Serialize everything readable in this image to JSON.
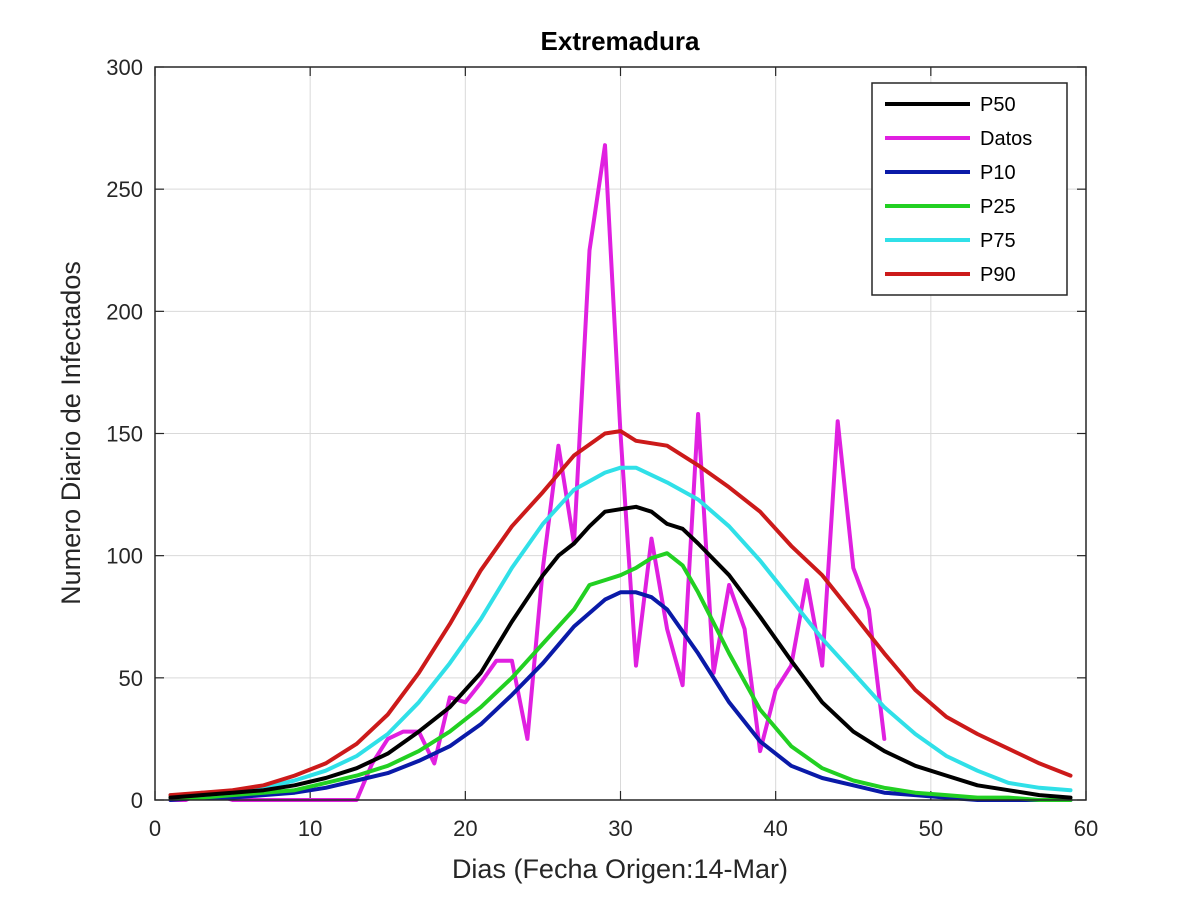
{
  "chart_data": {
    "type": "line",
    "title": "Extremadura",
    "xlabel": "Dias (Fecha Origen:14-Mar)",
    "ylabel": "Numero Diario de Infectados",
    "xlim": [
      0,
      60
    ],
    "ylim": [
      0,
      300
    ],
    "xticks": [
      "0",
      "10",
      "20",
      "30",
      "40",
      "50",
      "60"
    ],
    "yticks": [
      "0",
      "50",
      "100",
      "150",
      "200",
      "250",
      "300"
    ],
    "grid": true,
    "legend_position": "top-right",
    "series": [
      {
        "name": "P50",
        "color": "#000000",
        "x": [
          1,
          3,
          5,
          7,
          9,
          11,
          13,
          15,
          17,
          19,
          21,
          23,
          25,
          26,
          27,
          28,
          29,
          30,
          31,
          32,
          33,
          34,
          35,
          37,
          39,
          41,
          43,
          45,
          47,
          49,
          51,
          53,
          55,
          57,
          59
        ],
        "y": [
          1,
          2,
          3,
          4,
          6,
          9,
          13,
          19,
          28,
          38,
          52,
          73,
          92,
          100,
          105,
          112,
          118,
          119,
          120,
          118,
          113,
          111,
          105,
          92,
          75,
          57,
          40,
          28,
          20,
          14,
          10,
          6,
          4,
          2,
          1
        ]
      },
      {
        "name": "Datos",
        "color": "#e020e0",
        "x": [
          1,
          2,
          3,
          4,
          5,
          6,
          7,
          8,
          9,
          10,
          11,
          12,
          13,
          14,
          15,
          16,
          17,
          18,
          19,
          20,
          21,
          22,
          23,
          24,
          25,
          26,
          27,
          28,
          29,
          30,
          31,
          32,
          33,
          34,
          35,
          36,
          37,
          38,
          39,
          40,
          41,
          42,
          43,
          44,
          45,
          46,
          47
        ],
        "y": [
          0,
          0,
          3,
          2,
          0,
          0,
          0,
          0,
          0,
          0,
          0,
          0,
          0,
          15,
          25,
          28,
          28,
          15,
          42,
          40,
          48,
          57,
          57,
          25,
          95,
          145,
          105,
          225,
          268,
          150,
          55,
          107,
          70,
          47,
          158,
          52,
          88,
          70,
          20,
          45,
          55,
          90,
          55,
          155,
          95,
          78,
          25
        ]
      },
      {
        "name": "P10",
        "color": "#0a1aa8",
        "x": [
          1,
          3,
          5,
          7,
          9,
          11,
          13,
          15,
          17,
          19,
          21,
          23,
          25,
          27,
          29,
          30,
          31,
          32,
          33,
          35,
          37,
          39,
          41,
          43,
          45,
          47,
          49,
          51,
          53,
          55,
          57,
          59
        ],
        "y": [
          0,
          1,
          1,
          2,
          3,
          5,
          8,
          11,
          16,
          22,
          31,
          43,
          56,
          71,
          82,
          85,
          85,
          83,
          78,
          60,
          40,
          24,
          14,
          9,
          6,
          3,
          2,
          1,
          0,
          0,
          0,
          0
        ]
      },
      {
        "name": "P25",
        "color": "#22d022",
        "x": [
          1,
          3,
          5,
          7,
          9,
          11,
          13,
          15,
          17,
          19,
          21,
          23,
          25,
          27,
          28,
          29,
          30,
          31,
          32,
          33,
          34,
          35,
          37,
          39,
          41,
          43,
          45,
          47,
          49,
          51,
          53,
          55,
          57,
          59
        ],
        "y": [
          1,
          1,
          2,
          3,
          4,
          7,
          10,
          14,
          20,
          28,
          38,
          50,
          64,
          78,
          88,
          90,
          92,
          95,
          99,
          101,
          96,
          85,
          60,
          37,
          22,
          13,
          8,
          5,
          3,
          2,
          1,
          1,
          0,
          0
        ]
      },
      {
        "name": "P75",
        "color": "#30e0e8",
        "x": [
          1,
          3,
          5,
          7,
          9,
          11,
          13,
          15,
          17,
          19,
          21,
          23,
          25,
          27,
          29,
          30,
          31,
          33,
          35,
          37,
          39,
          41,
          43,
          45,
          47,
          49,
          51,
          53,
          55,
          57,
          59
        ],
        "y": [
          2,
          2,
          3,
          5,
          8,
          12,
          18,
          27,
          40,
          56,
          74,
          95,
          113,
          127,
          134,
          136,
          136,
          130,
          123,
          112,
          98,
          82,
          66,
          52,
          38,
          27,
          18,
          12,
          7,
          5,
          4
        ]
      },
      {
        "name": "P90",
        "color": "#cc1a1a",
        "x": [
          1,
          3,
          5,
          7,
          9,
          11,
          13,
          15,
          17,
          19,
          21,
          23,
          25,
          27,
          29,
          30,
          31,
          33,
          35,
          37,
          39,
          41,
          43,
          45,
          47,
          49,
          51,
          53,
          55,
          57,
          59
        ],
        "y": [
          2,
          3,
          4,
          6,
          10,
          15,
          23,
          35,
          52,
          72,
          94,
          112,
          126,
          141,
          150,
          151,
          147,
          145,
          137,
          128,
          118,
          104,
          92,
          76,
          60,
          45,
          34,
          27,
          21,
          15,
          10
        ]
      }
    ]
  }
}
